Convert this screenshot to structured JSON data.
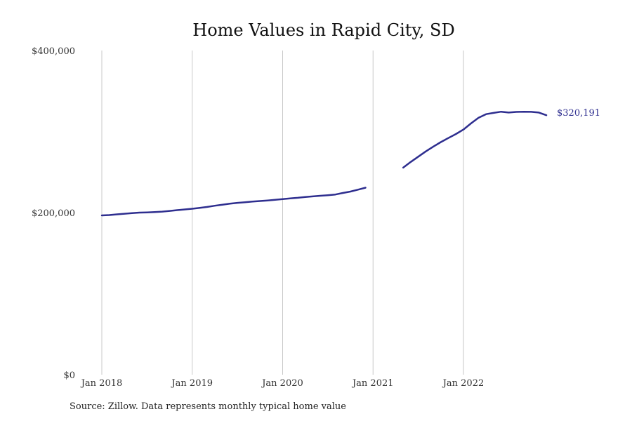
{
  "source_note": "Source: Zillow. Data represents monthly typical home value",
  "colors": {
    "line": "#2e2e8f",
    "grid": "#c8c8c8"
  },
  "chart_data": {
    "type": "line",
    "title": "Home Values in Rapid City, SD",
    "xlabel": "",
    "ylabel": "",
    "xlim": [
      "2018-01",
      "2022-12"
    ],
    "ylim": [
      0,
      400000
    ],
    "x_ticks": [
      {
        "x": "2018-01",
        "label": "Jan 2018"
      },
      {
        "x": "2019-01",
        "label": "Jan 2019"
      },
      {
        "x": "2020-01",
        "label": "Jan 2020"
      },
      {
        "x": "2021-01",
        "label": "Jan 2021"
      },
      {
        "x": "2022-01",
        "label": "Jan 2022"
      }
    ],
    "y_ticks": [
      {
        "y": 0,
        "label": "$0"
      },
      {
        "y": 200000,
        "label": "$200,000"
      },
      {
        "y": 400000,
        "label": "$400,000"
      }
    ],
    "grid": "vertical",
    "end_label": "$320,191",
    "series": [
      {
        "segments": [
          {
            "x": [
              "2018-01",
              "2018-02",
              "2018-03",
              "2018-04",
              "2018-05",
              "2018-06",
              "2018-07",
              "2018-08",
              "2018-09",
              "2018-10",
              "2018-11",
              "2018-12",
              "2019-01",
              "2019-02",
              "2019-03",
              "2019-04",
              "2019-05",
              "2019-06",
              "2019-07",
              "2019-08",
              "2019-09",
              "2019-10",
              "2019-11",
              "2019-12",
              "2020-01",
              "2020-02",
              "2020-03",
              "2020-04",
              "2020-05",
              "2020-06",
              "2020-07",
              "2020-08",
              "2020-09",
              "2020-10",
              "2020-11",
              "2020-12"
            ],
            "y": [
              196500,
              197000,
              197800,
              198600,
              199400,
              200000,
              200300,
              200700,
              201200,
              202100,
              203000,
              203900,
              204800,
              205800,
              207000,
              208500,
              209800,
              211000,
              212000,
              212800,
              213600,
              214300,
              215000,
              215800,
              216700,
              217500,
              218300,
              219300,
              220000,
              220800,
              221500,
              222300,
              224200,
              226000,
              228300,
              230700
            ]
          },
          {
            "x": [
              "2021-05",
              "2021-06",
              "2021-07",
              "2021-08",
              "2021-09",
              "2021-10",
              "2021-11",
              "2021-12",
              "2022-01",
              "2022-02",
              "2022-03",
              "2022-04",
              "2022-05",
              "2022-06",
              "2022-07",
              "2022-08",
              "2022-09",
              "2022-10",
              "2022-11",
              "2022-12"
            ],
            "y": [
              255500,
              262500,
              269000,
              275500,
              281500,
              287000,
              292000,
              297000,
              302500,
              310000,
              317000,
              321500,
              323000,
              324500,
              323500,
              324200,
              324500,
              324300,
              323500,
              320191
            ]
          }
        ]
      }
    ]
  }
}
